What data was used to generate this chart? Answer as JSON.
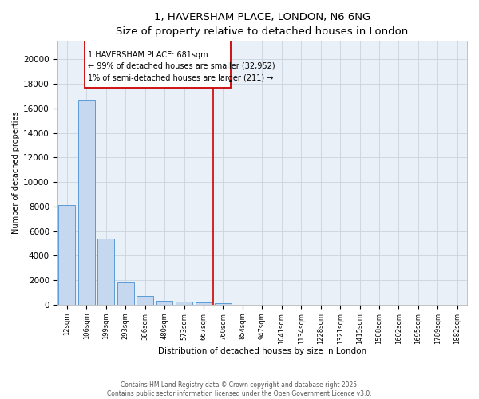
{
  "title1": "1, HAVERSHAM PLACE, LONDON, N6 6NG",
  "title2": "Size of property relative to detached houses in London",
  "xlabel": "Distribution of detached houses by size in London",
  "ylabel": "Number of detached properties",
  "bar_color": "#c5d8f0",
  "bar_edge_color": "#5b9bd5",
  "background_color": "#eaf0f8",
  "categories": [
    "12sqm",
    "106sqm",
    "199sqm",
    "293sqm",
    "386sqm",
    "480sqm",
    "573sqm",
    "667sqm",
    "760sqm",
    "854sqm",
    "947sqm",
    "1041sqm",
    "1134sqm",
    "1228sqm",
    "1321sqm",
    "1415sqm",
    "1508sqm",
    "1602sqm",
    "1695sqm",
    "1789sqm",
    "1882sqm"
  ],
  "bar_values": [
    8100,
    16700,
    5400,
    1800,
    700,
    350,
    230,
    170,
    110,
    0,
    0,
    0,
    0,
    0,
    0,
    0,
    0,
    0,
    0,
    0,
    0
  ],
  "red_line_x": 7.5,
  "annotation_title": "1 HAVERSHAM PLACE: 681sqm",
  "annotation_line1": "← 99% of detached houses are smaller (32,952)",
  "annotation_line2": "1% of semi-detached houses are larger (211) →",
  "yticks": [
    0,
    2000,
    4000,
    6000,
    8000,
    10000,
    12000,
    14000,
    16000,
    18000,
    20000
  ],
  "ylim": [
    0,
    21500
  ],
  "footer1": "Contains HM Land Registry data © Crown copyright and database right 2025.",
  "footer2": "Contains public sector information licensed under the Open Government Licence v3.0."
}
